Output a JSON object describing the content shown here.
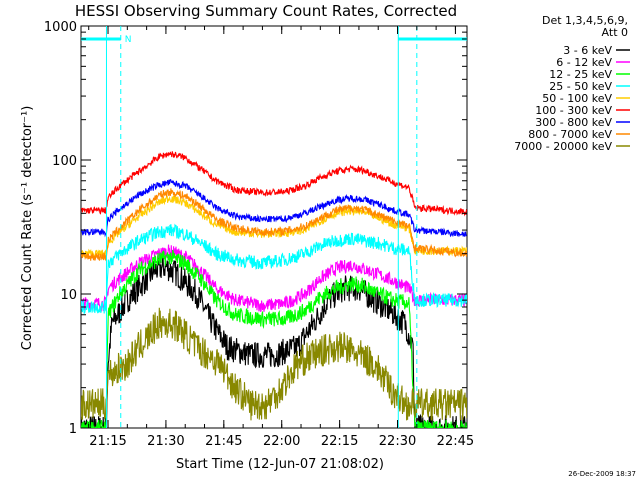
{
  "chart_data": {
    "type": "line",
    "title": "HESSI Observing Summary Count Rates, Corrected",
    "xlabel": "Start Time (12-Jun-07 21:08:02)",
    "ylabel": "Corrected Count Rate (s⁻¹ detector⁻¹)",
    "y_scale": "log",
    "ylim": [
      1,
      1000
    ],
    "xlim_minutes": [
      0,
      100
    ],
    "x_ticks": [
      {
        "label": "21:15",
        "minute": 7
      },
      {
        "label": "21:30",
        "minute": 22
      },
      {
        "label": "21:45",
        "minute": 37
      },
      {
        "label": "22:00",
        "minute": 52
      },
      {
        "label": "22:15",
        "minute": 67
      },
      {
        "label": "22:30",
        "minute": 82
      },
      {
        "label": "22:45",
        "minute": 97
      }
    ],
    "y_ticks": [
      {
        "label": "1",
        "value": 1
      },
      {
        "label": "10",
        "value": 10
      },
      {
        "label": "100",
        "value": 100
      },
      {
        "label": "1000",
        "value": 1000
      }
    ],
    "legend": {
      "placement": "top-right",
      "header": [
        "Det 1,3,4,5,6,9,",
        "Att 0"
      ]
    },
    "night_markers": {
      "label": "N",
      "solid_minutes": [
        6.6,
        82.2
      ],
      "dashed_minutes": [
        10.3,
        87.0
      ],
      "level": 800
    },
    "series": [
      {
        "name": "3 - 6 keV",
        "color": "#000000",
        "points": [
          [
            0,
            1
          ],
          [
            6.5,
            1
          ],
          [
            7,
            3
          ],
          [
            8,
            6
          ],
          [
            12,
            9
          ],
          [
            16,
            12
          ],
          [
            19,
            15
          ],
          [
            22,
            16
          ],
          [
            25,
            14
          ],
          [
            30,
            10
          ],
          [
            34,
            6
          ],
          [
            38,
            4
          ],
          [
            44,
            3.5
          ],
          [
            50,
            3.5
          ],
          [
            56,
            4
          ],
          [
            61,
            6.5
          ],
          [
            64,
            9
          ],
          [
            68,
            11
          ],
          [
            72,
            11
          ],
          [
            76,
            9
          ],
          [
            80,
            7.5
          ],
          [
            84,
            6
          ],
          [
            86,
            4
          ],
          [
            86.5,
            1
          ],
          [
            100,
            1
          ]
        ]
      },
      {
        "name": "6 - 12 keV",
        "color": "#ff00ff",
        "points": [
          [
            0,
            8.5
          ],
          [
            6.5,
            8.5
          ],
          [
            7,
            11
          ],
          [
            10,
            13
          ],
          [
            15,
            17
          ],
          [
            20,
            20
          ],
          [
            23,
            21
          ],
          [
            27,
            19
          ],
          [
            31,
            15
          ],
          [
            35,
            11
          ],
          [
            40,
            9
          ],
          [
            47,
            8.2
          ],
          [
            53,
            8.5
          ],
          [
            58,
            10
          ],
          [
            62,
            13
          ],
          [
            66,
            15.5
          ],
          [
            70,
            16.5
          ],
          [
            73,
            15.5
          ],
          [
            77,
            14
          ],
          [
            81,
            12.5
          ],
          [
            85,
            11
          ],
          [
            86.5,
            9
          ],
          [
            100,
            9
          ]
        ]
      },
      {
        "name": "12 - 25 keV",
        "color": "#00ff00",
        "points": [
          [
            0,
            1
          ],
          [
            6.5,
            1
          ],
          [
            7,
            7
          ],
          [
            10,
            10
          ],
          [
            15,
            15
          ],
          [
            20,
            18
          ],
          [
            23,
            19
          ],
          [
            27,
            17
          ],
          [
            31,
            13
          ],
          [
            35,
            9
          ],
          [
            40,
            7
          ],
          [
            47,
            6.5
          ],
          [
            53,
            6.5
          ],
          [
            58,
            7.5
          ],
          [
            62,
            9.5
          ],
          [
            66,
            11
          ],
          [
            70,
            12
          ],
          [
            73,
            11.5
          ],
          [
            77,
            10
          ],
          [
            81,
            9
          ],
          [
            85,
            8.5
          ],
          [
            86.5,
            1
          ],
          [
            100,
            1
          ]
        ]
      },
      {
        "name": "25 - 50 keV",
        "color": "#00ffff",
        "points": [
          [
            0,
            8
          ],
          [
            6.5,
            8
          ],
          [
            7,
            17
          ],
          [
            10,
            20
          ],
          [
            15,
            25
          ],
          [
            20,
            29
          ],
          [
            23,
            30
          ],
          [
            27,
            28
          ],
          [
            31,
            24
          ],
          [
            35,
            20
          ],
          [
            40,
            18
          ],
          [
            47,
            17
          ],
          [
            53,
            18
          ],
          [
            58,
            20
          ],
          [
            62,
            23
          ],
          [
            66,
            25
          ],
          [
            70,
            26
          ],
          [
            73,
            25
          ],
          [
            77,
            24
          ],
          [
            81,
            22
          ],
          [
            85,
            21
          ],
          [
            86.5,
            9
          ],
          [
            100,
            9
          ]
        ]
      },
      {
        "name": "50 - 100 keV",
        "color": "#ffcc00",
        "points": [
          [
            0,
            20
          ],
          [
            6.5,
            20
          ],
          [
            7,
            24
          ],
          [
            10,
            29
          ],
          [
            15,
            38
          ],
          [
            20,
            48
          ],
          [
            23,
            52
          ],
          [
            27,
            48
          ],
          [
            31,
            40
          ],
          [
            35,
            33
          ],
          [
            40,
            29
          ],
          [
            47,
            28
          ],
          [
            53,
            28.5
          ],
          [
            58,
            30
          ],
          [
            62,
            35
          ],
          [
            66,
            40
          ],
          [
            70,
            42
          ],
          [
            73,
            41
          ],
          [
            77,
            37
          ],
          [
            81,
            33
          ],
          [
            85,
            31
          ],
          [
            86.5,
            21
          ],
          [
            100,
            21
          ]
        ]
      },
      {
        "name": "100 - 300 keV",
        "color": "#ff0000",
        "points": [
          [
            0,
            42
          ],
          [
            6.5,
            42
          ],
          [
            7,
            52
          ],
          [
            10,
            64
          ],
          [
            15,
            82
          ],
          [
            20,
            105
          ],
          [
            23,
            112
          ],
          [
            27,
            104
          ],
          [
            31,
            86
          ],
          [
            35,
            70
          ],
          [
            40,
            60
          ],
          [
            47,
            57
          ],
          [
            53,
            58
          ],
          [
            58,
            64
          ],
          [
            62,
            74
          ],
          [
            66,
            82
          ],
          [
            70,
            86
          ],
          [
            73,
            84
          ],
          [
            77,
            76
          ],
          [
            81,
            68
          ],
          [
            85,
            62
          ],
          [
            86.5,
            44
          ],
          [
            100,
            41
          ]
        ]
      },
      {
        "name": "300 - 800 keV",
        "color": "#0000ff",
        "points": [
          [
            0,
            29
          ],
          [
            6.5,
            29
          ],
          [
            7,
            36
          ],
          [
            10,
            43
          ],
          [
            15,
            55
          ],
          [
            20,
            65
          ],
          [
            23,
            68
          ],
          [
            27,
            64
          ],
          [
            31,
            54
          ],
          [
            35,
            44
          ],
          [
            40,
            38
          ],
          [
            47,
            36
          ],
          [
            53,
            36.5
          ],
          [
            58,
            40
          ],
          [
            62,
            45
          ],
          [
            66,
            50
          ],
          [
            70,
            52
          ],
          [
            73,
            51
          ],
          [
            77,
            47
          ],
          [
            81,
            42
          ],
          [
            85,
            39
          ],
          [
            86.5,
            30
          ],
          [
            100,
            28
          ]
        ]
      },
      {
        "name": "800 - 7000 keV",
        "color": "#ff8800",
        "points": [
          [
            0,
            19
          ],
          [
            6.5,
            19
          ],
          [
            7,
            25
          ],
          [
            10,
            31
          ],
          [
            15,
            42
          ],
          [
            20,
            54
          ],
          [
            23,
            58
          ],
          [
            27,
            54
          ],
          [
            31,
            45
          ],
          [
            35,
            36
          ],
          [
            40,
            31
          ],
          [
            47,
            29
          ],
          [
            53,
            29.5
          ],
          [
            58,
            32
          ],
          [
            62,
            37
          ],
          [
            66,
            42
          ],
          [
            70,
            44
          ],
          [
            73,
            43
          ],
          [
            77,
            39
          ],
          [
            81,
            35
          ],
          [
            85,
            32
          ],
          [
            86.5,
            22
          ],
          [
            100,
            20
          ]
        ]
      },
      {
        "name": "7000 - 20000 keV",
        "color": "#888800",
        "points": [
          [
            0,
            1.5
          ],
          [
            6.5,
            1.5
          ],
          [
            7,
            2.5
          ],
          [
            12,
            3
          ],
          [
            15,
            4
          ],
          [
            18,
            5
          ],
          [
            20,
            6
          ],
          [
            24,
            6
          ],
          [
            27,
            5
          ],
          [
            30,
            4
          ],
          [
            33,
            3.5
          ],
          [
            36,
            3
          ],
          [
            40,
            2
          ],
          [
            44,
            1.5
          ],
          [
            48,
            1.5
          ],
          [
            52,
            2
          ],
          [
            56,
            3
          ],
          [
            60,
            3.5
          ],
          [
            65,
            4
          ],
          [
            68,
            4
          ],
          [
            72,
            3.5
          ],
          [
            76,
            3
          ],
          [
            80,
            2
          ],
          [
            84,
            1.5
          ],
          [
            86.5,
            1.5
          ],
          [
            100,
            1.5
          ]
        ]
      }
    ]
  },
  "footer": {
    "timestamp": "26-Dec-2009 18:37"
  }
}
